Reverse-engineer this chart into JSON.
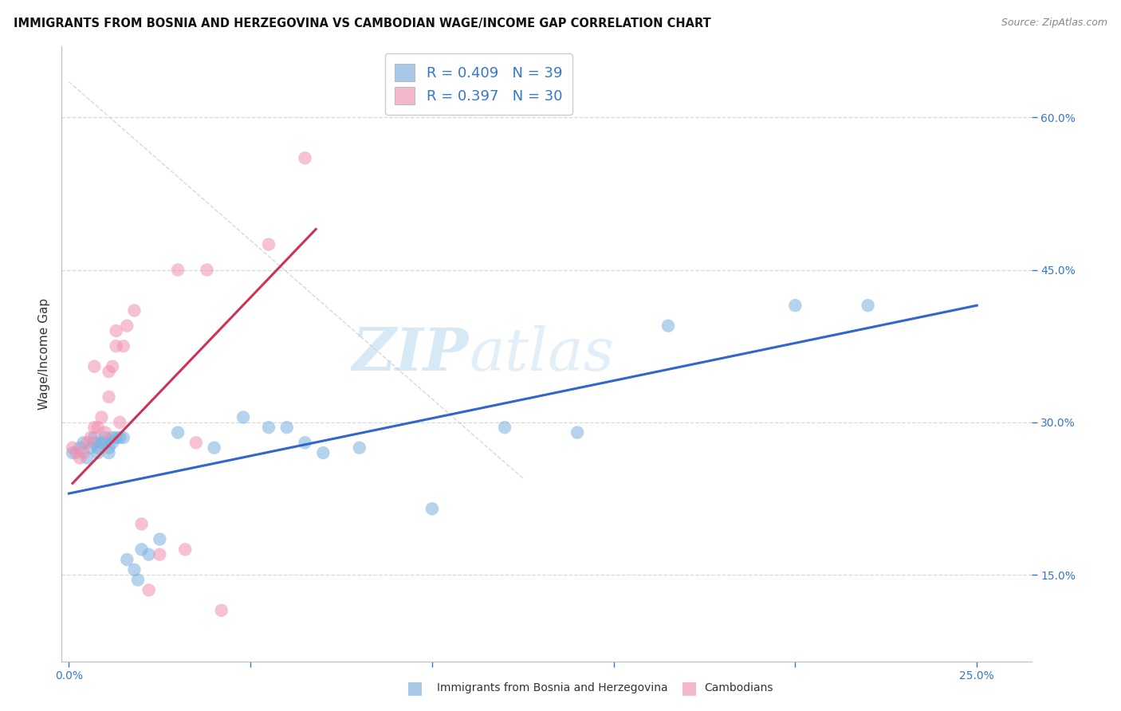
{
  "title": "IMMIGRANTS FROM BOSNIA AND HERZEGOVINA VS CAMBODIAN WAGE/INCOME GAP CORRELATION CHART",
  "source": "Source: ZipAtlas.com",
  "ylabel": "Wage/Income Gap",
  "x_ticks": [
    0.0,
    0.05,
    0.1,
    0.15,
    0.2,
    0.25
  ],
  "x_tick_labels": [
    "0.0%",
    "",
    "",
    "",
    "",
    "25.0%"
  ],
  "y_ticks": [
    0.15,
    0.3,
    0.45,
    0.6
  ],
  "y_tick_labels": [
    "15.0%",
    "30.0%",
    "45.0%",
    "60.0%"
  ],
  "xlim": [
    -0.002,
    0.265
  ],
  "ylim": [
    0.065,
    0.67
  ],
  "legend1_label": "R = 0.409   N = 39",
  "legend2_label": "R = 0.397   N = 30",
  "legend1_color": "#a8c8e8",
  "legend2_color": "#f4b8cc",
  "blue_line_color": "#3366cc",
  "pink_line_color": "#cc3355",
  "watermark_zip": "ZIP",
  "watermark_atlas": "atlas",
  "blue_scatter_color": "#7ab0e0",
  "pink_scatter_color": "#f090b0",
  "blue_scatter_alpha": 0.55,
  "pink_scatter_alpha": 0.55,
  "scatter_size": 140,
  "blue_points_x": [
    0.001,
    0.003,
    0.004,
    0.005,
    0.006,
    0.007,
    0.007,
    0.008,
    0.008,
    0.009,
    0.01,
    0.01,
    0.011,
    0.011,
    0.012,
    0.012,
    0.013,
    0.014,
    0.015,
    0.016,
    0.018,
    0.019,
    0.02,
    0.022,
    0.025,
    0.03,
    0.04,
    0.048,
    0.055,
    0.06,
    0.065,
    0.07,
    0.08,
    0.1,
    0.12,
    0.14,
    0.165,
    0.2,
    0.22
  ],
  "blue_points_y": [
    0.27,
    0.275,
    0.28,
    0.265,
    0.275,
    0.28,
    0.285,
    0.275,
    0.27,
    0.28,
    0.28,
    0.285,
    0.275,
    0.27,
    0.285,
    0.28,
    0.285,
    0.285,
    0.285,
    0.165,
    0.155,
    0.145,
    0.175,
    0.17,
    0.185,
    0.29,
    0.275,
    0.305,
    0.295,
    0.295,
    0.28,
    0.27,
    0.275,
    0.215,
    0.295,
    0.29,
    0.395,
    0.415,
    0.415
  ],
  "pink_points_x": [
    0.001,
    0.002,
    0.003,
    0.004,
    0.005,
    0.006,
    0.007,
    0.007,
    0.008,
    0.009,
    0.01,
    0.011,
    0.011,
    0.012,
    0.013,
    0.013,
    0.014,
    0.015,
    0.016,
    0.018,
    0.02,
    0.022,
    0.025,
    0.03,
    0.032,
    0.035,
    0.038,
    0.042,
    0.055,
    0.065
  ],
  "pink_points_y": [
    0.275,
    0.27,
    0.265,
    0.27,
    0.28,
    0.285,
    0.295,
    0.355,
    0.295,
    0.305,
    0.29,
    0.325,
    0.35,
    0.355,
    0.375,
    0.39,
    0.3,
    0.375,
    0.395,
    0.41,
    0.2,
    0.135,
    0.17,
    0.45,
    0.175,
    0.28,
    0.45,
    0.115,
    0.475,
    0.56
  ],
  "blue_line_x": [
    0.0,
    0.25
  ],
  "blue_line_y": [
    0.23,
    0.415
  ],
  "pink_line_x": [
    0.001,
    0.068
  ],
  "pink_line_y": [
    0.24,
    0.49
  ],
  "diagonal_line_x": [
    0.0,
    0.125
  ],
  "diagonal_line_y": [
    0.635,
    0.245
  ],
  "grid_color": "#d8d8d8",
  "background_color": "#ffffff",
  "title_fontsize": 10.5,
  "source_fontsize": 9,
  "tick_fontsize": 10,
  "ylabel_fontsize": 11
}
